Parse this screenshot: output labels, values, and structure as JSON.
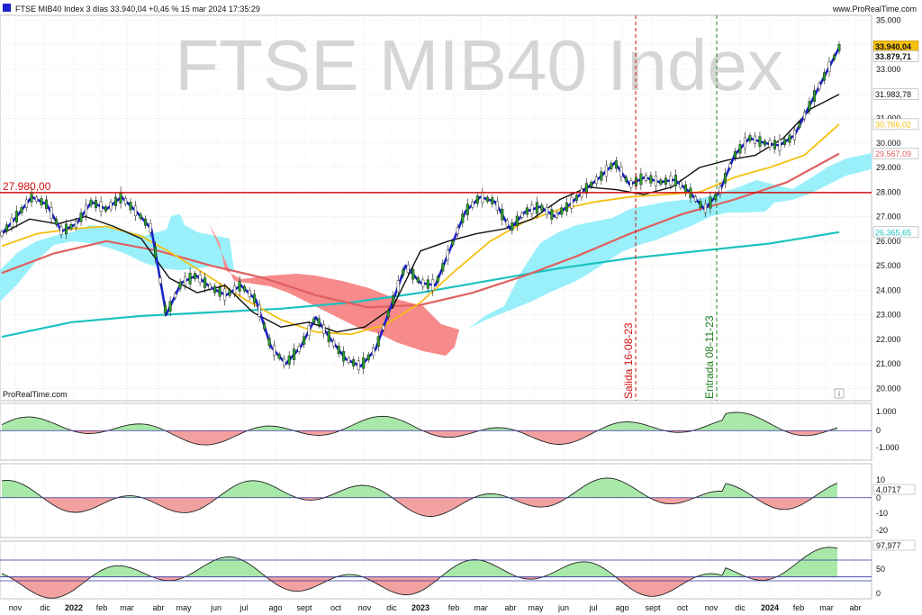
{
  "header": {
    "instrument_line": "FTSE MIB40 Index 3 días 33.940,04 +0,46 % 15 mar 2024 17:35:29",
    "site": "www.ProRealTime.com"
  },
  "watermark": "FTSE MIB40 Index",
  "footer_brand": "ProRealTime.com",
  "info_icon": "i",
  "colors": {
    "price": "#1a22c8",
    "black_ma": "#111111",
    "yellow_ma": "#f5bf10",
    "red_ma": "#e06060",
    "teal_ma": "#1cc2c0",
    "cloud_bull": "#9af0fa",
    "cloud_bear": "#f78a8a",
    "hline": "#d01010",
    "exit_line": "#d01010",
    "entry_line": "#208020",
    "osc_pos": "#a8e8a8",
    "osc_neg": "#f2a0a0",
    "osc_line": "#222222",
    "grid": "#c8c8c8"
  },
  "chart_data": [
    {
      "type": "line",
      "title": "FTSE MIB40 Index 3 días",
      "x_ticks": [
        "nov",
        "dic",
        "2022",
        "feb",
        "mar",
        "abr",
        "may",
        "jun",
        "jul",
        "ago",
        "sept",
        "oct",
        "nov",
        "dic",
        "2023",
        "feb",
        "mar",
        "abr",
        "may",
        "jun",
        "jul",
        "ago",
        "sept",
        "oct",
        "nov",
        "dic",
        "2024",
        "feb",
        "mar",
        "abr"
      ],
      "y_ticks": [
        "35.000",
        "34.000",
        "33.000",
        "32.000",
        "31.000",
        "30.000",
        "29.000",
        "28.000",
        "27.000",
        "26.000",
        "25.000",
        "24.000",
        "23.000",
        "22.000",
        "21.000",
        "20.000"
      ],
      "ylim": [
        19500,
        35200
      ],
      "hline": {
        "value": 27980,
        "label": "27.980,00"
      },
      "vlines": [
        {
          "date": "16-08-23",
          "label": "Salida 16-08-23"
        },
        {
          "date": "08-11-23",
          "label": "Entrada 08-11-23"
        }
      ],
      "right_labels": [
        {
          "text": "33.940,04",
          "value": 33940,
          "series": "last"
        },
        {
          "text": "33.879,71",
          "value": 33880,
          "series": "price"
        },
        {
          "text": "31.983,78",
          "value": 31984,
          "series": "black_ma"
        },
        {
          "text": "30.766,02",
          "value": 30766,
          "series": "yellow_ma"
        },
        {
          "text": "29.567,09",
          "value": 29567,
          "series": "red_ma"
        },
        {
          "text": "26.365,65",
          "value": 26366,
          "series": "teal_ma"
        }
      ],
      "series": [
        {
          "key": "price",
          "values": [
            [
              0,
              26300
            ],
            [
              1,
              27000
            ],
            [
              2,
              27800
            ],
            [
              3,
              27500
            ],
            [
              4,
              26400
            ],
            [
              5,
              26700
            ],
            [
              6,
              27600
            ],
            [
              7,
              27300
            ],
            [
              8,
              27800
            ],
            [
              9,
              27200
            ],
            [
              10,
              26500
            ],
            [
              11,
              23000
            ],
            [
              12,
              24300
            ],
            [
              13,
              24600
            ],
            [
              14,
              24100
            ],
            [
              15,
              23800
            ],
            [
              16,
              24200
            ],
            [
              17,
              23600
            ],
            [
              18,
              21700
            ],
            [
              19,
              21000
            ],
            [
              20,
              21700
            ],
            [
              21,
              22900
            ],
            [
              22,
              22000
            ],
            [
              23,
              21200
            ],
            [
              24,
              20900
            ],
            [
              25,
              21600
            ],
            [
              26,
              23300
            ],
            [
              27,
              25000
            ],
            [
              28,
              24300
            ],
            [
              29,
              24200
            ],
            [
              30,
              25700
            ],
            [
              31,
              27200
            ],
            [
              32,
              27800
            ],
            [
              33,
              27600
            ],
            [
              34,
              26500
            ],
            [
              35,
              27200
            ],
            [
              36,
              27400
            ],
            [
              37,
              27000
            ],
            [
              38,
              27500
            ],
            [
              39,
              28100
            ],
            [
              40,
              28600
            ],
            [
              41,
              29200
            ],
            [
              42,
              28300
            ],
            [
              43,
              28600
            ],
            [
              44,
              28400
            ],
            [
              45,
              28500
            ],
            [
              46,
              28000
            ],
            [
              47,
              27300
            ],
            [
              48,
              28000
            ],
            [
              49,
              29500
            ],
            [
              50,
              30200
            ],
            [
              51,
              30000
            ],
            [
              52,
              29900
            ],
            [
              53,
              30300
            ],
            [
              54,
              31500
            ],
            [
              55,
              32700
            ],
            [
              56,
              33880
            ]
          ]
        },
        {
          "key": "black_ma",
          "values": [
            [
              0,
              26300
            ],
            [
              1,
              26900
            ],
            [
              2,
              26700
            ],
            [
              3,
              27000
            ],
            [
              4,
              26600
            ],
            [
              5,
              26100
            ],
            [
              6,
              24500
            ],
            [
              7,
              23900
            ],
            [
              8,
              24200
            ],
            [
              9,
              23100
            ],
            [
              10,
              22500
            ],
            [
              11,
              22700
            ],
            [
              12,
              22300
            ],
            [
              13,
              22500
            ],
            [
              14,
              23300
            ],
            [
              15,
              25600
            ],
            [
              16,
              26000
            ],
            [
              17,
              26300
            ],
            [
              18,
              26500
            ],
            [
              19,
              26900
            ],
            [
              20,
              27700
            ],
            [
              21,
              28200
            ],
            [
              22,
              28100
            ],
            [
              23,
              27900
            ],
            [
              24,
              28200
            ],
            [
              25,
              29000
            ],
            [
              26,
              29300
            ],
            [
              27,
              29500
            ],
            [
              28,
              30200
            ],
            [
              29,
              31400
            ],
            [
              30,
              31984
            ]
          ]
        },
        {
          "key": "yellow_ma",
          "values": [
            [
              0,
              25800
            ],
            [
              1,
              26300
            ],
            [
              2,
              26500
            ],
            [
              3,
              26600
            ],
            [
              4,
              26200
            ],
            [
              5,
              25400
            ],
            [
              6,
              24500
            ],
            [
              7,
              23600
            ],
            [
              8,
              22800
            ],
            [
              9,
              22300
            ],
            [
              10,
              22200
            ],
            [
              11,
              22600
            ],
            [
              12,
              23500
            ],
            [
              13,
              24800
            ],
            [
              14,
              26000
            ],
            [
              15,
              26800
            ],
            [
              16,
              27300
            ],
            [
              17,
              27600
            ],
            [
              18,
              27800
            ],
            [
              19,
              27900
            ],
            [
              20,
              28000
            ],
            [
              21,
              28600
            ],
            [
              22,
              29000
            ],
            [
              23,
              29500
            ],
            [
              24,
              30766
            ]
          ]
        },
        {
          "key": "red_ma",
          "values": [
            [
              0,
              24700
            ],
            [
              1,
              25500
            ],
            [
              2,
              26000
            ],
            [
              3,
              25600
            ],
            [
              4,
              25000
            ],
            [
              5,
              24500
            ],
            [
              6,
              23800
            ],
            [
              7,
              23300
            ],
            [
              8,
              23400
            ],
            [
              9,
              23900
            ],
            [
              10,
              24600
            ],
            [
              11,
              25400
            ],
            [
              12,
              26300
            ],
            [
              13,
              27100
            ],
            [
              14,
              27700
            ],
            [
              15,
              28400
            ],
            [
              16,
              29567
            ]
          ]
        },
        {
          "key": "teal_ma",
          "values": [
            [
              0,
              22100
            ],
            [
              1,
              22700
            ],
            [
              2,
              22950
            ],
            [
              3,
              23100
            ],
            [
              4,
              23250
            ],
            [
              5,
              23500
            ],
            [
              6,
              23900
            ],
            [
              7,
              24400
            ],
            [
              8,
              24900
            ],
            [
              9,
              25300
            ],
            [
              10,
              25600
            ],
            [
              11,
              25900
            ],
            [
              12,
              26366
            ]
          ]
        }
      ]
    },
    {
      "type": "area",
      "title": "",
      "y_ticks": [
        "1.000",
        "0",
        "-1.000"
      ],
      "ylim": [
        -1500,
        1500
      ]
    },
    {
      "type": "area",
      "title": "",
      "y_ticks": [
        "10",
        "0",
        "-10",
        "-20"
      ],
      "ylim": [
        -26,
        14
      ],
      "last_label": "4,0717"
    },
    {
      "type": "area",
      "title": "",
      "y_ticks": [
        "50",
        "0"
      ],
      "ylim": [
        -10,
        110
      ],
      "levels": [
        70,
        30
      ],
      "last_label": "97,977"
    }
  ]
}
